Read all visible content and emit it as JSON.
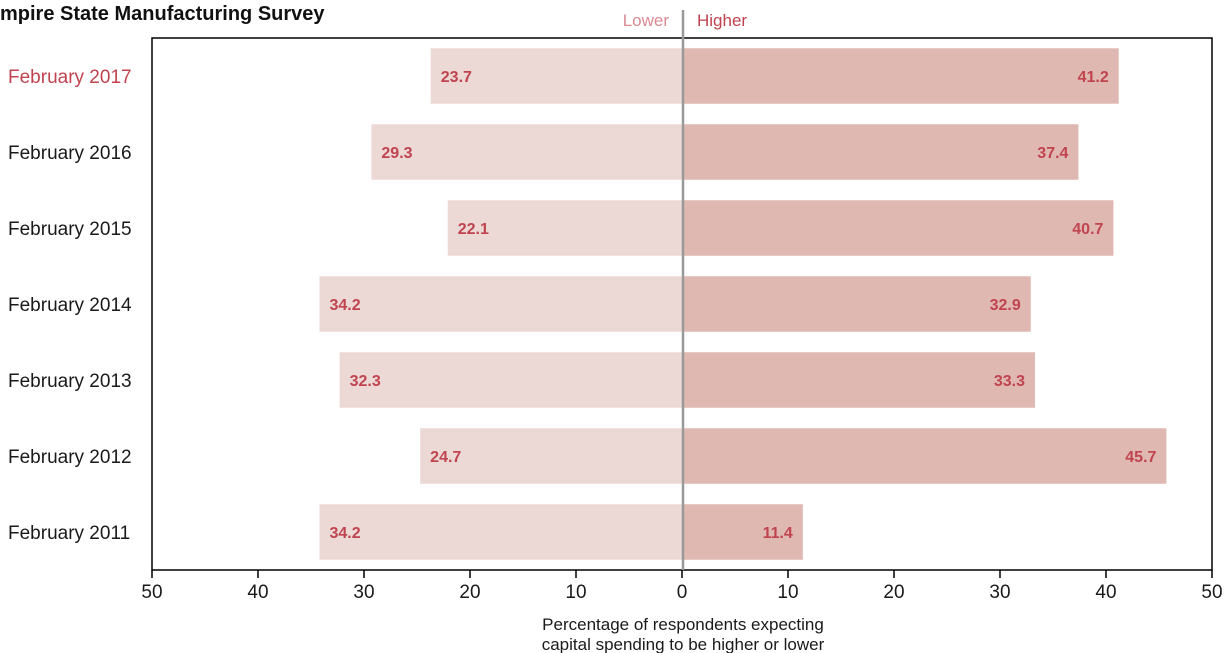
{
  "chart_data": {
    "type": "bar",
    "orientation": "horizontal-diverging",
    "title": "mpire State Manufacturing Survey",
    "side_labels": {
      "lower": "Lower",
      "higher": "Higher"
    },
    "xlabel": [
      "Percentage of respondents expecting",
      "capital spending to be higher or lower"
    ],
    "xlim": [
      -50,
      50
    ],
    "x_ticks": [
      50,
      40,
      30,
      20,
      10,
      0,
      10,
      20,
      30,
      40,
      50
    ],
    "highlight_category": "February 2017",
    "categories": [
      "February 2017",
      "February 2016",
      "February 2015",
      "February 2014",
      "February 2013",
      "February 2012",
      "February 2011"
    ],
    "series": [
      {
        "name": "Lower",
        "values": [
          23.7,
          29.3,
          22.1,
          34.2,
          32.3,
          24.7,
          34.2
        ]
      },
      {
        "name": "Higher",
        "values": [
          41.2,
          37.4,
          40.7,
          32.9,
          33.3,
          45.7,
          11.4
        ]
      }
    ],
    "colors": {
      "lower": "#ecd8d4",
      "higher": "#e0b8b2",
      "label": "#c0444f",
      "axis": "#000000",
      "center_line": "#999999"
    }
  }
}
